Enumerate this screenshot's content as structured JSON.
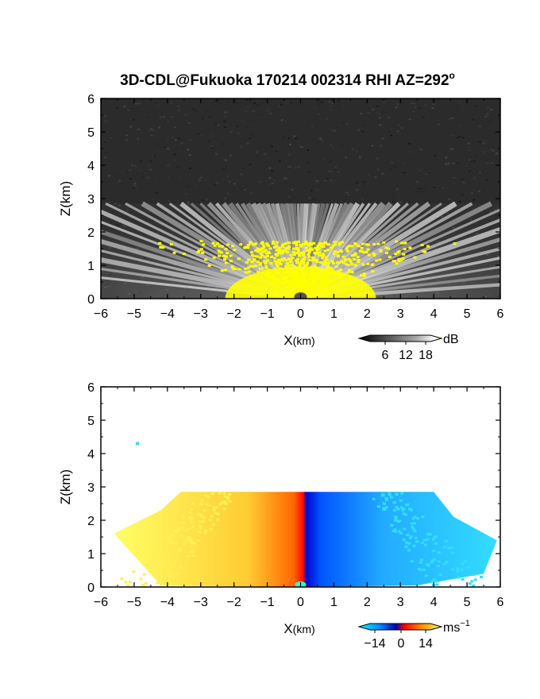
{
  "title": "3D-CDL@Fukuoka 170214 002314 RHI AZ=292",
  "title_superscript": "o",
  "chart_data": [
    {
      "type": "heatmap",
      "name": "backscatter",
      "xlabel_main": "X",
      "xlabel_unit": "(km)",
      "ylabel": "Z(km)",
      "xlim": [
        -6,
        6
      ],
      "ylim": [
        0,
        6
      ],
      "xticks": [
        -6,
        -5,
        -4,
        -3,
        -2,
        -1,
        0,
        1,
        2,
        3,
        4,
        5,
        6
      ],
      "yticks": [
        0,
        1,
        2,
        3,
        4,
        5,
        6
      ],
      "data_top_km": 2.85,
      "saturated_region_top_km": 1.85,
      "background_color": "#2b2b2b",
      "saturation_color": "#ffff00",
      "colorbar": {
        "unit": "dB",
        "ticks": [
          "6",
          "12",
          "18"
        ],
        "colors": [
          "#000000",
          "#555555",
          "#aaaaaa",
          "#ffffff",
          "#ffff00"
        ]
      }
    },
    {
      "type": "heatmap",
      "name": "doppler_velocity",
      "xlabel_main": "X",
      "xlabel_unit": "(km)",
      "ylabel": "Z(km)",
      "xlim": [
        -6,
        6
      ],
      "ylim": [
        0,
        6
      ],
      "xticks": [
        -6,
        -5,
        -4,
        -3,
        -2,
        -1,
        0,
        1,
        2,
        3,
        4,
        5,
        6
      ],
      "yticks": [
        0,
        1,
        2,
        3,
        4,
        5,
        6
      ],
      "data_top_km": 2.85,
      "colorbar": {
        "unit": "ms",
        "unit_superscript": "−1",
        "ticks": [
          "−14",
          "0",
          "14"
        ],
        "colors": [
          "#00ffff",
          "#0044ff",
          "#0000aa",
          "#ff0000",
          "#ff8800",
          "#ffff66"
        ]
      }
    }
  ]
}
